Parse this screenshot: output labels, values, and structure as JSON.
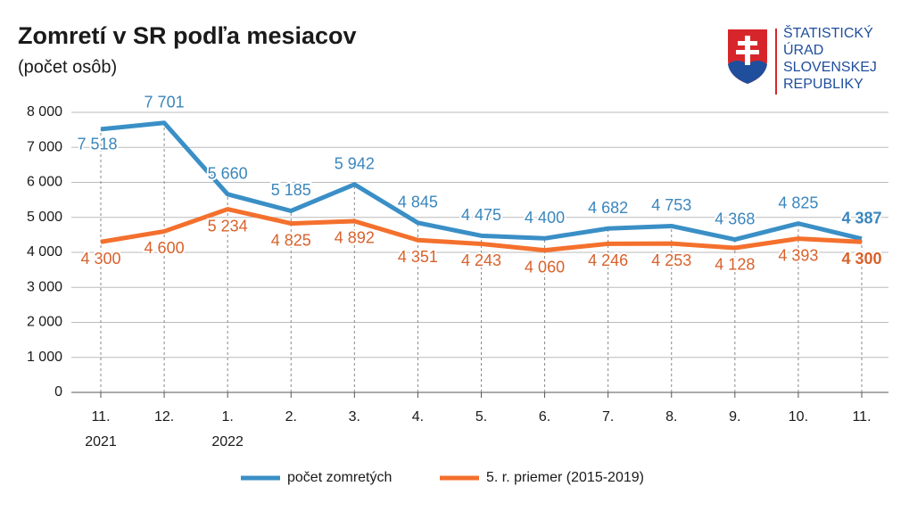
{
  "chart_data": {
    "type": "line",
    "title": "Zomretí v SR podľa mesiacov",
    "subtitle": "(počet osôb)",
    "logo": [
      "ŠTATISTICKÝ",
      "ÚRAD",
      "SLOVENSKEJ",
      "REPUBLIKY"
    ],
    "categories": [
      "11.",
      "12.",
      "1.",
      "2.",
      "3.",
      "4.",
      "5.",
      "6.",
      "7.",
      "8.",
      "9.",
      "10.",
      "11."
    ],
    "category_years": [
      "2021",
      null,
      "2022",
      null,
      null,
      null,
      null,
      null,
      null,
      null,
      null,
      null,
      null
    ],
    "ylim": [
      0,
      8000
    ],
    "yticks": [
      0,
      {
        "value": 1000,
        "label": "1 000"
      },
      {
        "value": 2000,
        "label": "2 000"
      },
      {
        "value": 3000,
        "label": "3 000"
      },
      {
        "value": 4000,
        "label": "4 000"
      },
      {
        "value": 5000,
        "label": "5 000"
      },
      {
        "value": 6000,
        "label": "6 000"
      },
      {
        "value": 7000,
        "label": "7 000"
      },
      {
        "value": 8000,
        "label": "8 000"
      }
    ],
    "grid": true,
    "series": [
      {
        "name": "počet zomretých",
        "color": "#3a8fc6",
        "label_color": "#3a86bd",
        "values": [
          7518,
          7701,
          5660,
          5185,
          5942,
          4845,
          4475,
          4400,
          4682,
          4753,
          4368,
          4825,
          4387
        ],
        "value_labels": [
          "7 518",
          "7 701",
          "5 660",
          "5 185",
          "5 942",
          "4 845",
          "4 475",
          "4 400",
          "4 682",
          "4 753",
          "4 368",
          "4 825",
          "4 387"
        ]
      },
      {
        "name": "5. r. priemer (2015-2019)",
        "color": "#f4702d",
        "label_color": "#d8612b",
        "values": [
          4300,
          4600,
          5234,
          4825,
          4892,
          4351,
          4243,
          4060,
          4246,
          4253,
          4128,
          4393,
          4300
        ],
        "value_labels": [
          "4 300",
          "4 600",
          "5 234",
          "4 825",
          "4 892",
          "4 351",
          "4 243",
          "4 060",
          "4 246",
          "4 253",
          "4 128",
          "4 393",
          "4 300"
        ]
      }
    ]
  }
}
